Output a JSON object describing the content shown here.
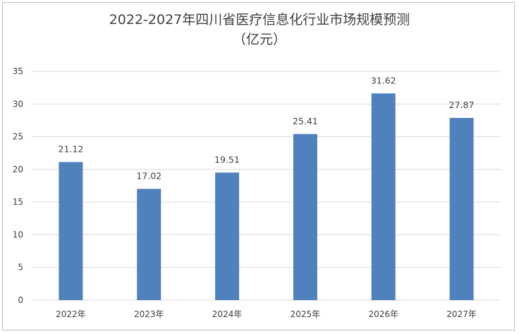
{
  "chart_data": {
    "type": "bar",
    "title_line1": "2022-2027年四川省医疗信息化行业市场规模预测",
    "title_line2": "（亿元）",
    "categories": [
      "2022年",
      "2023年",
      "2024年",
      "2025年",
      "2026年",
      "2027年"
    ],
    "values": [
      21.12,
      17.02,
      19.51,
      25.41,
      31.62,
      27.87
    ],
    "value_labels": [
      "21.12",
      "17.02",
      "19.51",
      "25.41",
      "31.62",
      "27.87"
    ],
    "ylim": [
      0,
      35
    ],
    "yticks": [
      0,
      5,
      10,
      15,
      20,
      25,
      30,
      35
    ],
    "grid": true,
    "bar_color": "#4f81bd",
    "grid_color": "#d9d9d9"
  }
}
